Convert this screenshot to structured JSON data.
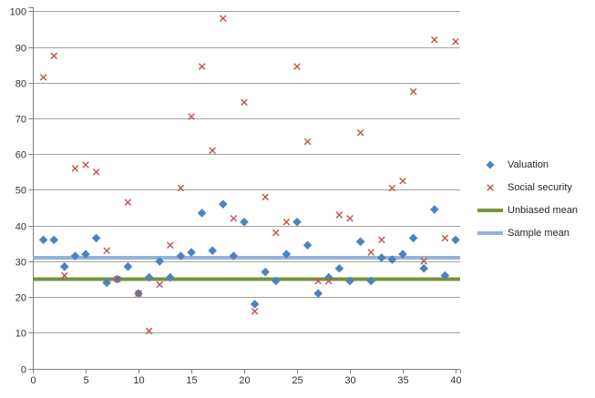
{
  "chart_data": {
    "type": "scatter",
    "x": [
      1,
      2,
      3,
      4,
      5,
      6,
      7,
      8,
      9,
      10,
      11,
      12,
      13,
      14,
      15,
      16,
      17,
      18,
      19,
      20,
      21,
      22,
      23,
      24,
      25,
      26,
      27,
      28,
      29,
      30,
      31,
      32,
      33,
      34,
      35,
      36,
      37,
      38,
      39,
      40
    ],
    "series": [
      {
        "name": "Valuation",
        "marker": "diamond",
        "color": "#4F81BD",
        "values": [
          36,
          36,
          28.5,
          31.5,
          32,
          36.5,
          24,
          25,
          28.5,
          21,
          25.5,
          30,
          25.5,
          31.5,
          32.5,
          43.5,
          33,
          46,
          31.5,
          41,
          18,
          27,
          24.5,
          32,
          41,
          34.5,
          21,
          25.5,
          28,
          24.5,
          35.5,
          24.5,
          31,
          30.5,
          32,
          36.5,
          28,
          44.5,
          26,
          36
        ]
      },
      {
        "name": "Social security",
        "marker": "x",
        "color": "#C0504D",
        "values": [
          81.5,
          87.5,
          26,
          56,
          57,
          55,
          33,
          25,
          46.5,
          21,
          10.5,
          23.5,
          34.5,
          50.5,
          70.5,
          84.5,
          61,
          98,
          42,
          74.5,
          16,
          48,
          38,
          41,
          84.5,
          63.5,
          24.5,
          24.5,
          43,
          42,
          66,
          32.5,
          36,
          50.5,
          52.5,
          77.5,
          30,
          92,
          36.5,
          91.5
        ]
      }
    ],
    "mean_lines": [
      {
        "name": "Unbiased mean",
        "marker": "line",
        "color": "#77933C",
        "value": 25
      },
      {
        "name": "Sample mean",
        "marker": "line",
        "color": "#95B3D7",
        "value": 31
      }
    ],
    "xlim": [
      0,
      40
    ],
    "ylim": [
      0,
      100
    ],
    "x_ticks": [
      0,
      5,
      10,
      15,
      20,
      25,
      30,
      35,
      40
    ],
    "y_ticks": [
      0,
      10,
      20,
      30,
      40,
      50,
      60,
      70,
      80,
      90,
      100
    ],
    "grid": true,
    "legend_position": "right"
  },
  "theme": {
    "background": "#FFFFFF",
    "gridline": "#A3A3A3",
    "axis": "#808080",
    "tick_text": "#333333",
    "legend_text": "#262626"
  }
}
